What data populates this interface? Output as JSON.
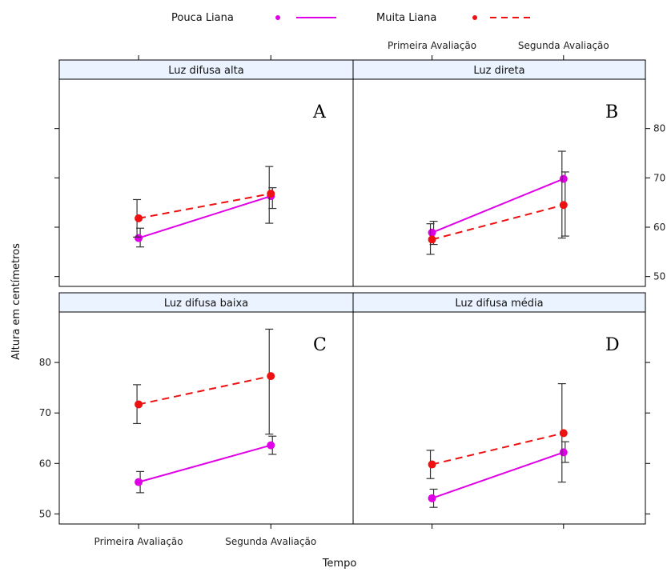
{
  "colors": {
    "pouca": "#e000e8",
    "muita": "#ee1111",
    "error_bar": "#333333",
    "strip_bg": "#eaf3ff"
  },
  "chart_data": {
    "type": "line",
    "xlabel": "Tempo",
    "ylabel": "Altura em centímetros",
    "categories": [
      "Primeira Avaliação",
      "Segunda Avaliação"
    ],
    "ylim": [
      48,
      90
    ],
    "yticks": [
      50,
      60,
      70,
      80
    ],
    "legend": {
      "position": "top",
      "entries": [
        {
          "name": "Pouca Liana",
          "color": "#e000e8",
          "line": "solid",
          "marker": "dot"
        },
        {
          "name": "Muita Liana",
          "color": "#ee1111",
          "line": "dashed",
          "marker": "dot"
        }
      ]
    },
    "panels": [
      {
        "id": "A",
        "title": "Luz difusa alta",
        "series": [
          {
            "name": "Pouca Liana",
            "values": [
              57.8,
              66.3
            ],
            "lower": [
              56.0,
              63.8
            ],
            "upper": [
              59.8,
              68.0
            ]
          },
          {
            "name": "Muita Liana",
            "values": [
              61.8,
              66.8
            ],
            "lower": [
              58.0,
              60.8
            ],
            "upper": [
              65.6,
              72.3
            ]
          }
        ]
      },
      {
        "id": "B",
        "title": "Luz direta",
        "series": [
          {
            "name": "Pouca Liana",
            "values": [
              58.9,
              69.8
            ],
            "lower": [
              56.5,
              58.2
            ],
            "upper": [
              61.2,
              71.2
            ]
          },
          {
            "name": "Muita Liana",
            "values": [
              57.5,
              64.5
            ],
            "lower": [
              54.5,
              57.8
            ],
            "upper": [
              60.7,
              75.4
            ]
          }
        ]
      },
      {
        "id": "C",
        "title": "Luz difusa baixa",
        "series": [
          {
            "name": "Pouca Liana",
            "values": [
              56.3,
              63.6
            ],
            "lower": [
              54.2,
              61.8
            ],
            "upper": [
              58.4,
              65.4
            ]
          },
          {
            "name": "Muita Liana",
            "values": [
              71.7,
              77.3
            ],
            "lower": [
              67.9,
              65.8
            ],
            "upper": [
              75.6,
              86.6
            ]
          }
        ]
      },
      {
        "id": "D",
        "title": "Luz difusa média",
        "series": [
          {
            "name": "Pouca Liana",
            "values": [
              53.1,
              62.2
            ],
            "lower": [
              51.3,
              60.2
            ],
            "upper": [
              54.9,
              64.3
            ]
          },
          {
            "name": "Muita Liana",
            "values": [
              59.8,
              66.0
            ],
            "lower": [
              57.0,
              56.3
            ],
            "upper": [
              62.6,
              75.8
            ]
          }
        ]
      }
    ]
  }
}
